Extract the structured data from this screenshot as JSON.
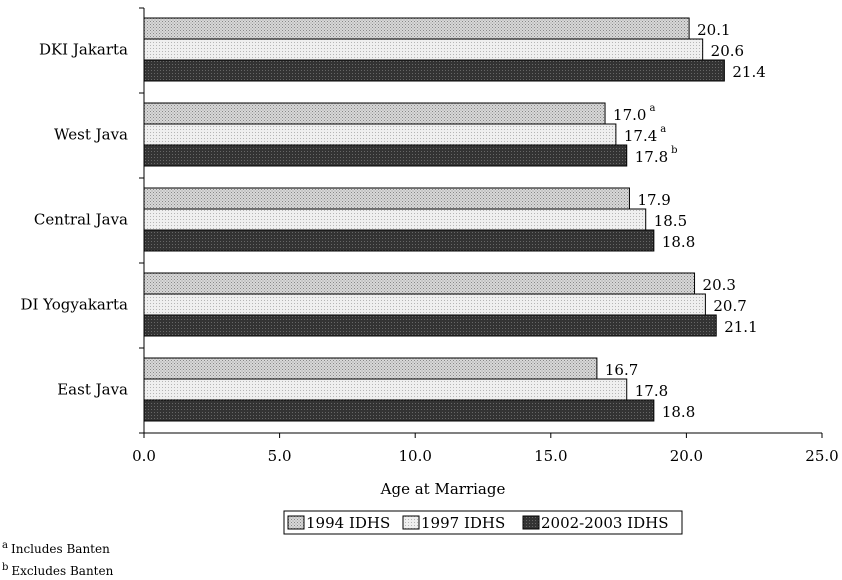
{
  "chart_data": {
    "type": "bar",
    "orientation": "horizontal",
    "categories": [
      "DKI Jakarta",
      "West Java",
      "Central Java",
      "DI Yogyakarta",
      "East Java"
    ],
    "series": [
      {
        "name": "1994 IDHS",
        "values": [
          20.1,
          17.0,
          17.9,
          20.3,
          16.7
        ],
        "labels": [
          "20.1",
          "17.0",
          "17.9",
          "20.3",
          "16.7"
        ],
        "notes": [
          "",
          "a",
          "",
          "",
          ""
        ],
        "color": "#d4d4d4",
        "pattern": "light-dots"
      },
      {
        "name": "1997 IDHS",
        "values": [
          20.6,
          17.4,
          18.5,
          20.7,
          17.8
        ],
        "labels": [
          "20.6",
          "17.4",
          "18.5",
          "20.7",
          "17.8"
        ],
        "notes": [
          "",
          "a",
          "",
          "",
          ""
        ],
        "color": "#eeeeee",
        "pattern": "fine-dots"
      },
      {
        "name": "2002-2003 IDHS",
        "values": [
          21.4,
          17.8,
          18.8,
          21.1,
          18.8
        ],
        "labels": [
          "21.4",
          "17.8",
          "18.8",
          "21.1",
          "18.8"
        ],
        "notes": [
          "",
          "b",
          "",
          "",
          ""
        ],
        "color": "#3a3a3a",
        "pattern": "dark"
      }
    ],
    "xlabel": "Age at Marriage",
    "xlim": [
      0,
      25
    ],
    "xticks": [
      "0.0",
      "5.0",
      "10.0",
      "15.0",
      "20.0",
      "25.0"
    ],
    "grid": false,
    "legend_position": "bottom"
  },
  "footnotes": [
    {
      "mark": "a",
      "text": "Includes Banten"
    },
    {
      "mark": "b",
      "text": "Excludes Banten"
    }
  ]
}
